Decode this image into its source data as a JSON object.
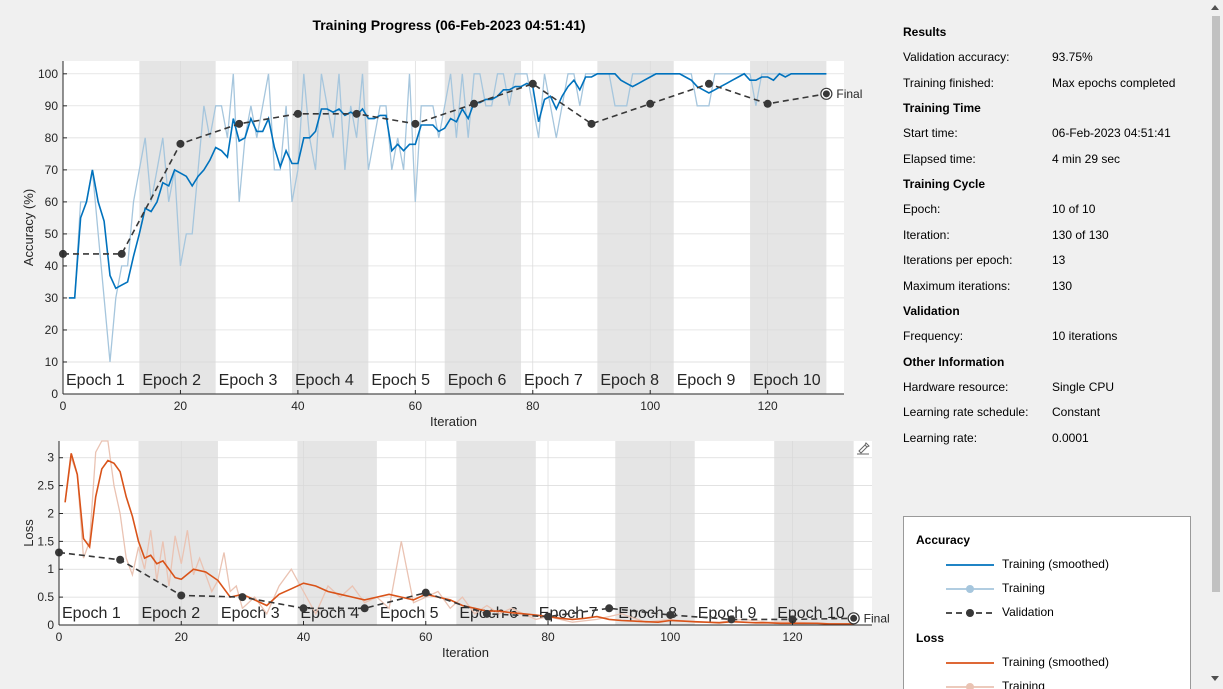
{
  "title": "Training Progress (06-Feb-2023 04:51:41)",
  "chart_data": [
    {
      "type": "line",
      "name": "accuracy",
      "xlabel": "Iteration",
      "ylabel": "Accuracy (%)",
      "xlim": [
        0,
        133
      ],
      "ylim": [
        0,
        104
      ],
      "xticks": [
        0,
        20,
        40,
        60,
        80,
        100,
        120
      ],
      "yticks": [
        0,
        10,
        20,
        30,
        40,
        50,
        60,
        70,
        80,
        90,
        100
      ],
      "grid": true,
      "epochs": [
        "Epoch 1",
        "Epoch 2",
        "Epoch 3",
        "Epoch 4",
        "Epoch 5",
        "Epoch 6",
        "Epoch 7",
        "Epoch 8",
        "Epoch 9",
        "Epoch 10"
      ],
      "iterations_per_epoch": 13,
      "final_label": "Final",
      "series": [
        {
          "name": "Training (smoothed)",
          "color": "#0072bd",
          "style": "solid",
          "x": [
            1,
            2,
            3,
            4,
            5,
            6,
            7,
            8,
            9,
            10,
            11,
            12,
            13,
            14,
            15,
            16,
            17,
            18,
            19,
            20,
            21,
            22,
            23,
            24,
            25,
            26,
            27,
            28,
            29,
            30,
            31,
            32,
            33,
            34,
            35,
            36,
            37,
            38,
            39,
            40,
            41,
            42,
            43,
            44,
            45,
            46,
            47,
            48,
            49,
            50,
            51,
            52,
            53,
            54,
            55,
            56,
            57,
            58,
            59,
            60,
            61,
            62,
            63,
            64,
            65,
            66,
            67,
            68,
            69,
            70,
            71,
            72,
            73,
            74,
            75,
            76,
            77,
            78,
            79,
            80,
            81,
            82,
            83,
            84,
            85,
            86,
            87,
            88,
            89,
            90,
            91,
            92,
            93,
            94,
            95,
            96,
            97,
            98,
            99,
            100,
            101,
            102,
            103,
            104,
            105,
            106,
            107,
            108,
            109,
            110,
            111,
            112,
            113,
            114,
            115,
            116,
            117,
            118,
            119,
            120,
            121,
            122,
            123,
            124,
            125,
            126,
            127,
            128,
            129,
            130
          ],
          "y": [
            30,
            30,
            55,
            60,
            70,
            60,
            54,
            37,
            33,
            34,
            35,
            43,
            50,
            58,
            57,
            60,
            66,
            65,
            70,
            69,
            68,
            65,
            68,
            70,
            73,
            77,
            76,
            74,
            86,
            79,
            80,
            86,
            82,
            82,
            86,
            77,
            71,
            76,
            72,
            72,
            80,
            80,
            82,
            89,
            89,
            88,
            89,
            87,
            88,
            87,
            89,
            86,
            86,
            87,
            87,
            76,
            78,
            76,
            78,
            78,
            84,
            84,
            84,
            82,
            83,
            86,
            85,
            89,
            86,
            91,
            91,
            92,
            92,
            93,
            95,
            95,
            96,
            96,
            97,
            96,
            85,
            92,
            93,
            89,
            93,
            96,
            98,
            95,
            99,
            99,
            100,
            100,
            100,
            100,
            98,
            97,
            96,
            97,
            98,
            99,
            100,
            100,
            100,
            100,
            100,
            99,
            98,
            96,
            95,
            94,
            95,
            96,
            97,
            98,
            99,
            100,
            98,
            98,
            99,
            99,
            98,
            100,
            99,
            100,
            100,
            100,
            100,
            100,
            100,
            100
          ]
        },
        {
          "name": "Training",
          "color": "#a6c6dd",
          "style": "solid",
          "x": [
            1,
            2,
            3,
            4,
            5,
            6,
            7,
            8,
            9,
            10,
            11,
            12,
            13,
            14,
            15,
            16,
            17,
            18,
            19,
            20,
            21,
            22,
            23,
            24,
            25,
            26,
            27,
            28,
            29,
            30,
            31,
            32,
            33,
            34,
            35,
            36,
            37,
            38,
            39,
            40,
            41,
            42,
            43,
            44,
            45,
            46,
            47,
            48,
            49,
            50,
            51,
            52,
            53,
            54,
            55,
            56,
            57,
            58,
            59,
            60,
            61,
            62,
            63,
            64,
            65,
            66,
            67,
            68,
            69,
            70,
            71,
            72,
            73,
            74,
            75,
            76,
            77,
            78,
            79,
            80,
            81,
            82,
            83,
            84,
            85,
            86,
            87,
            88,
            89,
            90,
            91,
            92,
            93,
            94,
            95,
            96,
            97,
            98,
            99,
            100,
            101,
            102,
            103,
            104,
            105,
            106,
            107,
            108,
            109,
            110,
            111,
            112,
            113,
            114,
            115,
            116,
            117,
            118,
            119,
            120,
            121,
            122,
            123,
            124,
            125,
            126,
            127,
            128,
            129,
            130
          ],
          "y": [
            30,
            30,
            60,
            60,
            70,
            50,
            30,
            10,
            30,
            40,
            40,
            60,
            70,
            80,
            60,
            70,
            80,
            60,
            70,
            40,
            50,
            50,
            70,
            90,
            80,
            90,
            90,
            80,
            100,
            60,
            80,
            90,
            80,
            90,
            100,
            70,
            70,
            90,
            60,
            70,
            100,
            80,
            70,
            100,
            90,
            80,
            100,
            70,
            90,
            80,
            100,
            70,
            80,
            90,
            90,
            70,
            80,
            70,
            100,
            60,
            90,
            90,
            90,
            80,
            90,
            100,
            80,
            100,
            80,
            100,
            100,
            90,
            90,
            100,
            100,
            90,
            100,
            100,
            100,
            90,
            80,
            100,
            90,
            80,
            90,
            100,
            100,
            90,
            100,
            100,
            100,
            100,
            100,
            90,
            90,
            90,
            100,
            100,
            100,
            100,
            100,
            100,
            100,
            100,
            100,
            100,
            100,
            90,
            90,
            90,
            100,
            100,
            100,
            100,
            100,
            100,
            100,
            90,
            100,
            100,
            100,
            100,
            100,
            100,
            100,
            100,
            100,
            100,
            100,
            100
          ]
        },
        {
          "name": "Validation",
          "color": "#383838",
          "style": "dashed",
          "x": [
            0,
            10,
            20,
            30,
            40,
            50,
            60,
            70,
            80,
            90,
            100,
            110,
            120,
            130
          ],
          "y": [
            43.75,
            43.75,
            78.13,
            84.38,
            87.5,
            87.5,
            84.38,
            90.63,
            96.88,
            84.38,
            90.63,
            96.88,
            90.63,
            93.75
          ]
        }
      ]
    },
    {
      "type": "line",
      "name": "loss",
      "xlabel": "Iteration",
      "ylabel": "Loss",
      "xlim": [
        0,
        133
      ],
      "ylim": [
        0,
        3.3
      ],
      "xticks": [
        0,
        20,
        40,
        60,
        80,
        100,
        120
      ],
      "yticks": [
        0,
        0.5,
        1,
        1.5,
        2,
        2.5,
        3
      ],
      "ytick_labels": [
        "0",
        "0.5",
        "1",
        "1.5",
        "2",
        "2.5",
        "3"
      ],
      "grid": true,
      "epochs": [
        "Epoch 1",
        "Epoch 2",
        "Epoch 3",
        "Epoch 4",
        "Epoch 5",
        "Epoch 6",
        "Epoch 7",
        "Epoch 8",
        "Epoch 9",
        "Epoch 10"
      ],
      "iterations_per_epoch": 13,
      "final_label": "Final",
      "series": [
        {
          "name": "Training (smoothed)",
          "color": "#d95319",
          "style": "solid",
          "x": [
            1,
            2,
            3,
            4,
            5,
            6,
            7,
            8,
            9,
            10,
            11,
            12,
            13,
            14,
            15,
            16,
            17,
            18,
            19,
            20,
            22,
            24,
            26,
            28,
            30,
            32,
            34,
            36,
            38,
            40,
            42,
            44,
            46,
            48,
            50,
            52,
            54,
            56,
            58,
            60,
            62,
            64,
            66,
            68,
            70,
            72,
            74,
            76,
            78,
            80,
            82,
            84,
            86,
            88,
            90,
            92,
            94,
            96,
            98,
            100,
            102,
            104,
            106,
            108,
            110,
            112,
            114,
            116,
            118,
            120,
            122,
            124,
            126,
            128,
            130
          ],
          "y": [
            2.2,
            3.08,
            2.7,
            1.55,
            1.4,
            2.3,
            2.8,
            2.95,
            2.9,
            2.75,
            2.3,
            1.95,
            1.5,
            1.2,
            1.25,
            1.1,
            1.15,
            1.0,
            0.85,
            0.82,
            1.0,
            0.95,
            0.8,
            0.5,
            0.55,
            0.45,
            0.35,
            0.55,
            0.65,
            0.75,
            0.7,
            0.6,
            0.55,
            0.5,
            0.45,
            0.5,
            0.55,
            0.5,
            0.45,
            0.55,
            0.5,
            0.45,
            0.35,
            0.3,
            0.25,
            0.25,
            0.22,
            0.2,
            0.18,
            0.15,
            0.12,
            0.1,
            0.12,
            0.15,
            0.1,
            0.08,
            0.07,
            0.06,
            0.05,
            0.08,
            0.07,
            0.06,
            0.05,
            0.04,
            0.06,
            0.05,
            0.04,
            0.04,
            0.03,
            0.03,
            0.03,
            0.03,
            0.02,
            0.02,
            0.02
          ]
        },
        {
          "name": "Training",
          "color": "#eac3b3",
          "style": "solid",
          "x": [
            1,
            2,
            3,
            4,
            5,
            6,
            7,
            8,
            9,
            10,
            11,
            12,
            13,
            14,
            15,
            16,
            17,
            18,
            19,
            20,
            21,
            22,
            23,
            24,
            25,
            26,
            27,
            28,
            29,
            30,
            32,
            34,
            36,
            38,
            40,
            42,
            44,
            46,
            48,
            50,
            52,
            54,
            56,
            58,
            60,
            62,
            64,
            66,
            68,
            70,
            72,
            74,
            76,
            78,
            80,
            84,
            88,
            92,
            96,
            100,
            104,
            108,
            112,
            116,
            120,
            124,
            128,
            130
          ],
          "y": [
            2.2,
            3.0,
            2.7,
            1.2,
            1.5,
            3.1,
            3.3,
            3.3,
            2.5,
            2.0,
            1.2,
            0.9,
            1.4,
            1.0,
            1.7,
            0.8,
            1.5,
            0.7,
            1.6,
            1.1,
            1.7,
            0.9,
            1.2,
            0.9,
            0.6,
            0.8,
            1.3,
            0.6,
            0.7,
            0.3,
            0.5,
            0.2,
            0.7,
            1.0,
            0.6,
            0.2,
            0.7,
            0.5,
            0.7,
            0.4,
            0.5,
            0.3,
            1.5,
            0.4,
            0.5,
            0.6,
            0.3,
            0.5,
            0.2,
            0.35,
            0.2,
            0.3,
            0.2,
            0.1,
            0.15,
            0.05,
            0.1,
            0.2,
            0.05,
            0.1,
            0.05,
            0.05,
            0.1,
            0.05,
            0.05,
            0.03,
            0.02,
            0.02
          ]
        },
        {
          "name": "Validation",
          "color": "#383838",
          "style": "dashed",
          "x": [
            0,
            10,
            20,
            30,
            40,
            50,
            60,
            70,
            80,
            90,
            100,
            110,
            120,
            130
          ],
          "y": [
            1.3,
            1.17,
            0.53,
            0.5,
            0.3,
            0.3,
            0.58,
            0.2,
            0.15,
            0.3,
            0.18,
            0.1,
            0.1,
            0.12
          ]
        }
      ]
    }
  ],
  "panel": {
    "sections": [
      {
        "title": "Results",
        "rows": [
          {
            "label": "Validation accuracy:",
            "value": "93.75%"
          },
          {
            "label": "Training finished:",
            "value": "Max epochs completed"
          }
        ]
      },
      {
        "title": "Training Time",
        "rows": [
          {
            "label": "Start time:",
            "value": "06-Feb-2023 04:51:41"
          },
          {
            "label": "Elapsed time:",
            "value": "4 min 29 sec"
          }
        ]
      },
      {
        "title": "Training Cycle",
        "rows": [
          {
            "label": "Epoch:",
            "value": "10 of 10"
          },
          {
            "label": "Iteration:",
            "value": "130 of 130"
          },
          {
            "label": "Iterations per epoch:",
            "value": "13"
          },
          {
            "label": "Maximum iterations:",
            "value": "130"
          }
        ]
      },
      {
        "title": "Validation",
        "rows": [
          {
            "label": "Frequency:",
            "value": "10 iterations"
          }
        ]
      },
      {
        "title": "Other Information",
        "rows": [
          {
            "label": "Hardware resource:",
            "value": "Single CPU"
          },
          {
            "label": "Learning rate schedule:",
            "value": "Constant"
          },
          {
            "label": "Learning rate:",
            "value": "0.0001"
          }
        ]
      }
    ]
  },
  "legend": {
    "groups": [
      {
        "title": "Accuracy",
        "items": [
          {
            "label": "Training (smoothed)",
            "color": "#0072bd",
            "marker": false,
            "dashed": false
          },
          {
            "label": "Training",
            "color": "#a6c6dd",
            "marker": true,
            "dashed": false
          },
          {
            "label": "Validation",
            "color": "#383838",
            "marker": true,
            "dashed": true
          }
        ]
      },
      {
        "title": "Loss",
        "items": [
          {
            "label": "Training (smoothed)",
            "color": "#d95319",
            "marker": false,
            "dashed": false
          },
          {
            "label": "Training",
            "color": "#eac3b3",
            "marker": true,
            "dashed": false
          }
        ]
      }
    ]
  },
  "export_icon": "export-plot-icon"
}
